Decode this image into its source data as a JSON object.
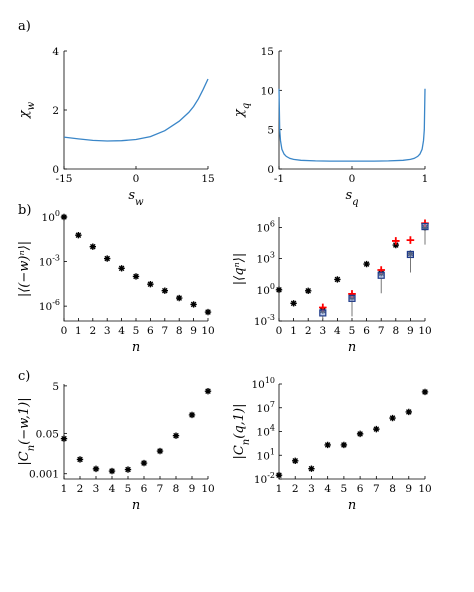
{
  "panel_labels": [
    "a)",
    "b)",
    "c)"
  ],
  "chart_data": [
    {
      "id": "chi-w",
      "type": "line",
      "xlabel": "s_w",
      "ylabel": "χ_w",
      "xlim": [
        -15,
        15
      ],
      "ylim": [
        0,
        4
      ],
      "xticks": [
        -15,
        0,
        15
      ],
      "yticks": [
        0,
        2,
        4
      ],
      "xtick_labels": [
        "-15",
        "0",
        "15"
      ],
      "ytick_labels": [
        "0",
        "2",
        "4"
      ],
      "series": [
        {
          "color": "#3a86c8",
          "x": [
            -15,
            -12,
            -9,
            -6,
            -3,
            0,
            3,
            6,
            9,
            11,
            12,
            13,
            14,
            15
          ],
          "y": [
            1.08,
            1.02,
            0.97,
            0.95,
            0.96,
            1.0,
            1.1,
            1.3,
            1.62,
            1.92,
            2.12,
            2.38,
            2.7,
            3.05
          ]
        }
      ]
    },
    {
      "id": "chi-q",
      "type": "line",
      "xlabel": "s_q",
      "ylabel": "χ_q",
      "xlim": [
        -1,
        1
      ],
      "ylim": [
        0,
        15
      ],
      "xticks": [
        -1,
        0,
        1
      ],
      "yticks": [
        0,
        5,
        10,
        15
      ],
      "xtick_labels": [
        "-1",
        "0",
        "1"
      ],
      "ytick_labels": [
        "0",
        "5",
        "10",
        "15"
      ],
      "series": [
        {
          "color": "#3a86c8",
          "x": [
            -1,
            -0.99,
            -0.98,
            -0.96,
            -0.93,
            -0.9,
            -0.85,
            -0.8,
            -0.7,
            -0.5,
            -0.3,
            0,
            0.3,
            0.5,
            0.7,
            0.8,
            0.85,
            0.9,
            0.93,
            0.96,
            0.98,
            0.99,
            1
          ],
          "y": [
            10.2,
            5.0,
            3.6,
            2.5,
            1.9,
            1.6,
            1.35,
            1.22,
            1.1,
            1.03,
            1.0,
            1.0,
            1.0,
            1.03,
            1.1,
            1.22,
            1.35,
            1.6,
            1.9,
            2.5,
            3.6,
            5.0,
            10.2
          ]
        }
      ]
    },
    {
      "id": "moments-w",
      "type": "scatter",
      "xlabel": "n",
      "ylabel": "|⟨(−w)ⁿ⟩|",
      "log_y": true,
      "xlim": [
        0,
        10
      ],
      "ylim": [
        1e-07,
        1
      ],
      "xticks": [
        0,
        1,
        2,
        3,
        4,
        5,
        6,
        7,
        8,
        9,
        10
      ],
      "yticks": [
        1,
        0.001,
        1e-06
      ],
      "ytick_base": "10",
      "ytick_exponents": [
        "0",
        "-3",
        "-6"
      ],
      "series": [
        {
          "marker": "star",
          "color": "#000000",
          "x": [
            0,
            1,
            2,
            3,
            4,
            5,
            6,
            7,
            8,
            9,
            10
          ],
          "y": [
            1,
            0.06,
            0.01,
            0.0016,
            0.00035,
            0.0001,
            3e-05,
            1.1e-05,
            3.5e-06,
            1.3e-06,
            4e-07
          ]
        }
      ]
    },
    {
      "id": "moments-q",
      "type": "scatter",
      "xlabel": "n",
      "ylabel": "|⟨qⁿ⟩|",
      "log_y": true,
      "xlim": [
        0,
        10
      ],
      "ylim": [
        0.001,
        10000000
      ],
      "xticks": [
        0,
        1,
        2,
        3,
        4,
        5,
        6,
        7,
        8,
        9,
        10
      ],
      "yticks": [
        0.001,
        1,
        1000,
        1000000
      ],
      "ytick_base": "10",
      "ytick_exponents": [
        "-3",
        "0",
        "3",
        "6"
      ],
      "series": [
        {
          "marker": "star",
          "color": "#000000",
          "x": [
            0,
            1,
            2,
            3,
            4,
            5,
            6,
            7,
            8,
            9,
            10
          ],
          "y": [
            1,
            0.05,
            0.8,
            0.01,
            10,
            0.2,
            300,
            40,
            20000,
            3000,
            1000000
          ]
        },
        {
          "marker": "plus",
          "color": "#ff0000",
          "x": [
            3,
            5,
            7,
            8,
            9,
            10
          ],
          "y": [
            0.02,
            0.4,
            80,
            50000,
            60000,
            2500000
          ]
        },
        {
          "marker": "box",
          "color": "#1f3b8a",
          "x": [
            3,
            5,
            7,
            9,
            10
          ],
          "y": [
            0.006,
            0.15,
            25,
            2500,
            1200000
          ]
        }
      ]
    },
    {
      "id": "cumulants-w",
      "type": "scatter",
      "xlabel": "n",
      "ylabel": "|C_n(−w,1)|",
      "log_y": true,
      "xlim": [
        1,
        10
      ],
      "ylim": [
        0.0006,
        6
      ],
      "xticks": [
        1,
        2,
        3,
        4,
        5,
        6,
        7,
        8,
        9,
        10
      ],
      "yticks": [
        0.001,
        0.05,
        5
      ],
      "ytick_labels": [
        "0.001",
        "0.05",
        "5"
      ],
      "series": [
        {
          "marker": "star",
          "color": "#000000",
          "x": [
            1,
            2,
            3,
            4,
            5,
            6,
            7,
            8,
            9,
            10
          ],
          "y": [
            0.03,
            0.004,
            0.0016,
            0.0013,
            0.0015,
            0.0028,
            0.009,
            0.04,
            0.3,
            3
          ]
        }
      ]
    },
    {
      "id": "cumulants-q",
      "type": "scatter",
      "xlabel": "n",
      "ylabel": "|C_n(q,1)|",
      "log_y": true,
      "xlim": [
        1,
        10
      ],
      "ylim": [
        0.01,
        10000000000
      ],
      "xticks": [
        1,
        2,
        3,
        4,
        5,
        6,
        7,
        8,
        9,
        10
      ],
      "yticks": [
        0.01,
        10,
        10000,
        10000000,
        10000000000
      ],
      "ytick_base": "10",
      "ytick_exponents": [
        "-2",
        "1",
        "4",
        "7",
        "10"
      ],
      "series": [
        {
          "marker": "star",
          "color": "#000000",
          "x": [
            1,
            2,
            3,
            4,
            5,
            6,
            7,
            8,
            9,
            10
          ],
          "y": [
            0.03,
            2,
            0.2,
            200,
            200,
            5000,
            20000,
            500000,
            3000000,
            1000000000
          ]
        }
      ]
    }
  ]
}
